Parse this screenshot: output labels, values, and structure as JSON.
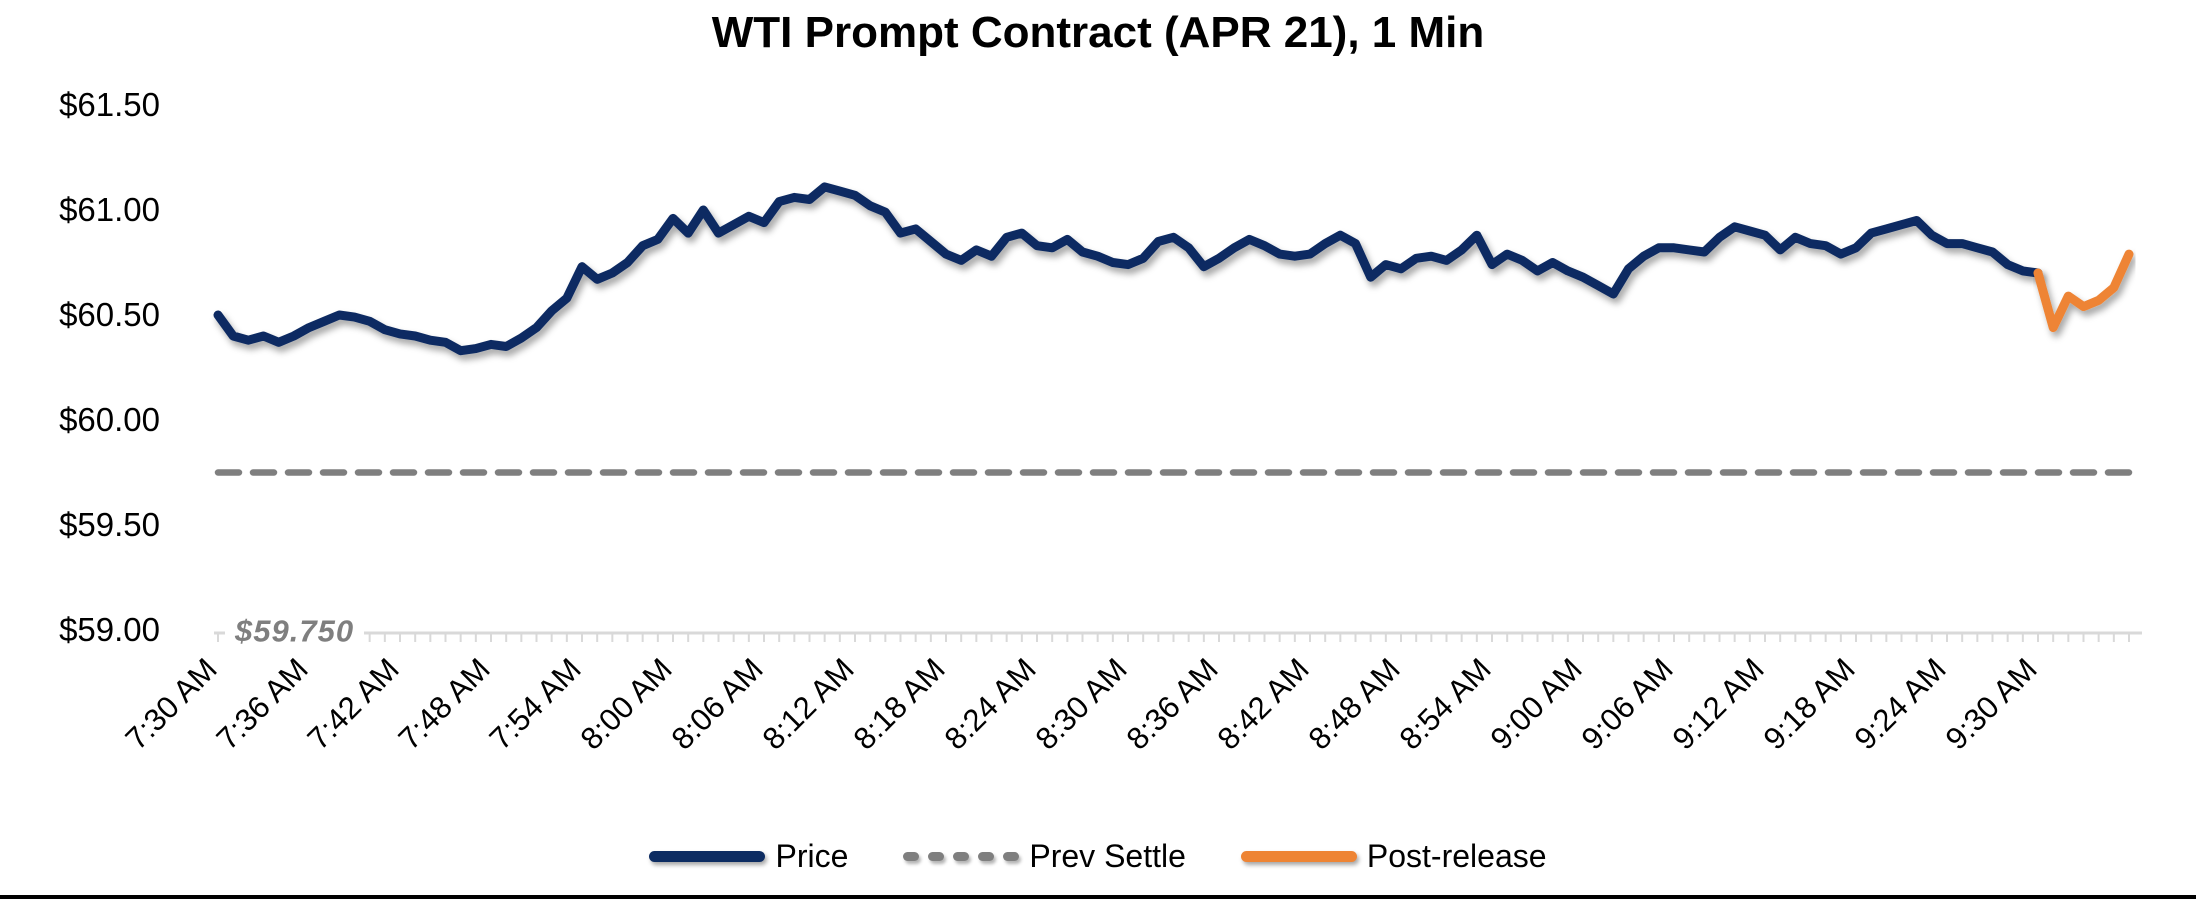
{
  "chart_data": {
    "type": "line",
    "title": "WTI Prompt Contract (APR 21), 1 Min",
    "x_interval_minutes": 1,
    "x_tick_labels": [
      "7:30 AM",
      "7:36 AM",
      "7:42 AM",
      "7:48 AM",
      "7:54 AM",
      "8:00 AM",
      "8:06 AM",
      "8:12 AM",
      "8:18 AM",
      "8:24 AM",
      "8:30 AM",
      "8:36 AM",
      "8:42 AM",
      "8:48 AM",
      "8:54 AM",
      "9:00 AM",
      "9:06 AM",
      "9:12 AM",
      "9:18 AM",
      "9:24 AM",
      "9:30 AM"
    ],
    "y_tick_labels": [
      "$61.50",
      "$61.00",
      "$60.50",
      "$60.00",
      "$59.50",
      "$59.00"
    ],
    "ylim": [
      59.0,
      61.5
    ],
    "y_tick_step": 0.5,
    "grid": "off",
    "legend_position": "bottom",
    "prev_settle": 59.75,
    "prev_settle_label": "$59.750",
    "legend": [
      "Price",
      "Prev Settle",
      "Post-release"
    ],
    "series": [
      {
        "name": "Price",
        "style": "solid",
        "color": "#0d2c62",
        "start_minute": 0,
        "start_time": "7:30 AM",
        "values": [
          60.5,
          60.4,
          60.38,
          60.4,
          60.37,
          60.4,
          60.44,
          60.47,
          60.5,
          60.49,
          60.47,
          60.43,
          60.41,
          60.4,
          60.38,
          60.37,
          60.33,
          60.34,
          60.36,
          60.35,
          60.39,
          60.44,
          60.52,
          60.58,
          60.73,
          60.67,
          60.7,
          60.75,
          60.83,
          60.86,
          60.96,
          60.89,
          61.0,
          60.89,
          60.93,
          60.97,
          60.94,
          61.04,
          61.06,
          61.05,
          61.11,
          61.09,
          61.07,
          61.02,
          60.99,
          60.89,
          60.91,
          60.85,
          60.79,
          60.76,
          60.81,
          60.78,
          60.87,
          60.89,
          60.83,
          60.82,
          60.86,
          60.8,
          60.78,
          60.75,
          60.74,
          60.77,
          60.85,
          60.87,
          60.82,
          60.73,
          60.77,
          60.82,
          60.86,
          60.83,
          60.79,
          60.78,
          60.79,
          60.84,
          60.88,
          60.84,
          60.68,
          60.74,
          60.72,
          60.77,
          60.78,
          60.76,
          60.81,
          60.88,
          60.74,
          60.79,
          60.76,
          60.71,
          60.75,
          60.71,
          60.68,
          60.64,
          60.6,
          60.72,
          60.78,
          60.82,
          60.82,
          60.81,
          60.8,
          60.87,
          60.92,
          60.9,
          60.88,
          60.81,
          60.87,
          60.84,
          60.83,
          60.79,
          60.82,
          60.89,
          60.91,
          60.93,
          60.95,
          60.88,
          60.84,
          60.84,
          60.82,
          60.8,
          60.74,
          60.71,
          60.7
        ]
      },
      {
        "name": "Prev Settle",
        "style": "dashed",
        "color": "#7f7f7f",
        "value": 59.75
      },
      {
        "name": "Post-release",
        "style": "solid",
        "color": "#ee8434",
        "start_minute": 120,
        "start_time": "9:30 AM",
        "values": [
          60.7,
          60.44,
          60.59,
          60.54,
          60.57,
          60.63,
          60.79
        ]
      }
    ]
  }
}
